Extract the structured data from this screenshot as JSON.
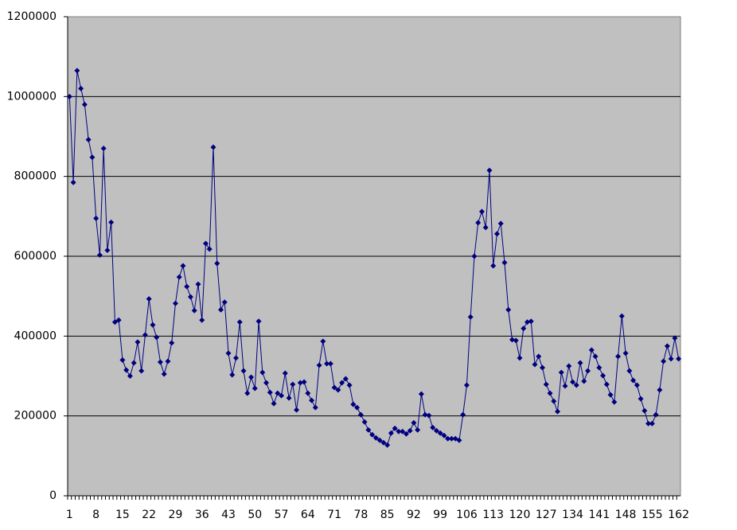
{
  "chart_data": {
    "type": "line",
    "color": "#000080",
    "background": "#c0c0c0",
    "grid": true,
    "marker": "diamond",
    "categories": [
      "1",
      null,
      null,
      null,
      null,
      null,
      null,
      "8",
      null,
      null,
      null,
      null,
      null,
      null,
      "15",
      null,
      null,
      null,
      null,
      null,
      null,
      "22",
      null,
      null,
      null,
      null,
      null,
      null,
      "29",
      null,
      null,
      null,
      null,
      null,
      null,
      "36",
      null,
      null,
      null,
      null,
      null,
      null,
      "43",
      null,
      null,
      null,
      null,
      null,
      null,
      "50",
      null,
      null,
      null,
      null,
      null,
      null,
      "57",
      null,
      null,
      null,
      null,
      null,
      null,
      "64",
      null,
      null,
      null,
      null,
      null,
      null,
      "71",
      null,
      null,
      null,
      null,
      null,
      null,
      "78",
      null,
      null,
      null,
      null,
      null,
      null,
      "85",
      null,
      null,
      null,
      null,
      null,
      null,
      "92",
      null,
      null,
      null,
      null,
      null,
      null,
      "99",
      null,
      null,
      null,
      null,
      null,
      null,
      "106",
      null,
      null,
      null,
      null,
      null,
      null,
      "113",
      null,
      null,
      null,
      null,
      null,
      null,
      "120",
      null,
      null,
      null,
      null,
      null,
      null,
      "127",
      null,
      null,
      null,
      null,
      null,
      null,
      "134",
      null,
      null,
      null,
      null,
      null,
      null,
      "141",
      null,
      null,
      null,
      null,
      null,
      null,
      "148",
      null,
      null,
      null,
      null,
      null,
      null,
      "155",
      null,
      null,
      null,
      null,
      null,
      null,
      "162"
    ],
    "values": [
      1000000,
      785000,
      1065000,
      1020000,
      980000,
      892000,
      848000,
      695000,
      603000,
      870000,
      615000,
      685000,
      435000,
      440000,
      340000,
      315000,
      300000,
      333000,
      385000,
      313000,
      403000,
      493000,
      428000,
      397000,
      335000,
      305000,
      337000,
      383000,
      482000,
      548000,
      576000,
      524000,
      498000,
      464000,
      530000,
      440000,
      632000,
      618000,
      873000,
      582000,
      466000,
      485000,
      357000,
      303000,
      345000,
      435000,
      313000,
      257000,
      297000,
      269000,
      437000,
      309000,
      283000,
      259000,
      231000,
      257000,
      251000,
      307000,
      245000,
      279000,
      215000,
      283000,
      285000,
      257000,
      239000,
      221000,
      327000,
      387000,
      331000,
      331000,
      271000,
      265000,
      283000,
      293000,
      277000,
      229000,
      221000,
      203000,
      185000,
      165000,
      153000,
      145000,
      139000,
      133000,
      127000,
      157000,
      169000,
      161000,
      161000,
      155000,
      163000,
      183000,
      165000,
      255000,
      203000,
      201000,
      171000,
      163000,
      157000,
      151000,
      143000,
      143000,
      143000,
      139000,
      203000,
      277000,
      448000,
      600000,
      684000,
      712000,
      672000,
      815000,
      576000,
      656000,
      682000,
      584000,
      466000,
      391000,
      389000,
      345000,
      419000,
      435000,
      437000,
      329000,
      349000,
      321000,
      279000,
      257000,
      237000,
      211000,
      309000,
      275000,
      325000,
      285000,
      277000,
      333000,
      287000,
      313000,
      365000,
      349000,
      321000,
      301000,
      279000,
      253000,
      235000,
      349000,
      450000,
      357000,
      313000,
      289000,
      277000,
      243000,
      213000,
      181000,
      181000,
      203000,
      265000,
      337000,
      375000,
      343000,
      395000,
      343000
    ],
    "ylim": [
      0,
      1200000
    ],
    "yticks": [
      0,
      200000,
      400000,
      600000,
      800000,
      1000000,
      1200000
    ]
  }
}
